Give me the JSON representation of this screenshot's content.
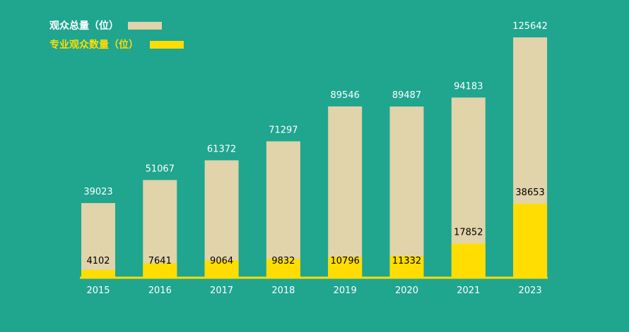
{
  "chart_data": {
    "type": "bar",
    "categories": [
      "2015",
      "2016",
      "2017",
      "2018",
      "2019",
      "2020",
      "2021",
      "2023"
    ],
    "series": [
      {
        "name": "观众总量（位）",
        "values": [
          39023,
          51067,
          61372,
          71297,
          89546,
          89487,
          94183,
          125642
        ]
      },
      {
        "name": "专业观众数量（位）",
        "values": [
          4102,
          7641,
          9064,
          9832,
          10796,
          11332,
          17852,
          38653
        ]
      }
    ],
    "title": "",
    "xlabel": "",
    "ylabel": "",
    "ylim": [
      0,
      125642
    ],
    "legend_position": "top-left",
    "grid": false
  },
  "colors": {
    "background": "#20a58f",
    "total": "#e1d3aa",
    "professional": "#ffdd00",
    "total_legend_text": "#ffffff",
    "professional_legend_text": "#ffdd00",
    "axis": "#ffdd00"
  }
}
